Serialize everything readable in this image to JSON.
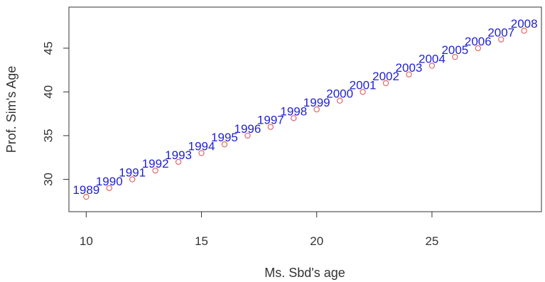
{
  "chart_data": {
    "type": "scatter",
    "title": "",
    "xlabel": "Ms. Sbd's age",
    "ylabel": "Prof. Sim's Age",
    "xlim": [
      9.25,
      29.75
    ],
    "ylim": [
      26.3,
      49.7
    ],
    "grid": false,
    "x_ticks": [
      10,
      15,
      20,
      25
    ],
    "y_ticks": [
      30,
      35,
      40,
      45
    ],
    "x": [
      10,
      11,
      12,
      13,
      14,
      15,
      16,
      17,
      18,
      19,
      20,
      21,
      22,
      23,
      24,
      25,
      26,
      27,
      28,
      29
    ],
    "y": [
      28,
      29,
      30,
      31,
      32,
      33,
      34,
      35,
      36,
      37,
      38,
      39,
      40,
      41,
      42,
      43,
      44,
      45,
      46,
      47
    ],
    "point_labels": [
      "1989",
      "1990",
      "1991",
      "1992",
      "1993",
      "1994",
      "1995",
      "1996",
      "1997",
      "1998",
      "1999",
      "2000",
      "2001",
      "2002",
      "2003",
      "2004",
      "2005",
      "2006",
      "2007",
      "2008"
    ],
    "colors": {
      "points": "#e06666",
      "labels": "#1f1fcf",
      "axis": "#333333"
    }
  }
}
